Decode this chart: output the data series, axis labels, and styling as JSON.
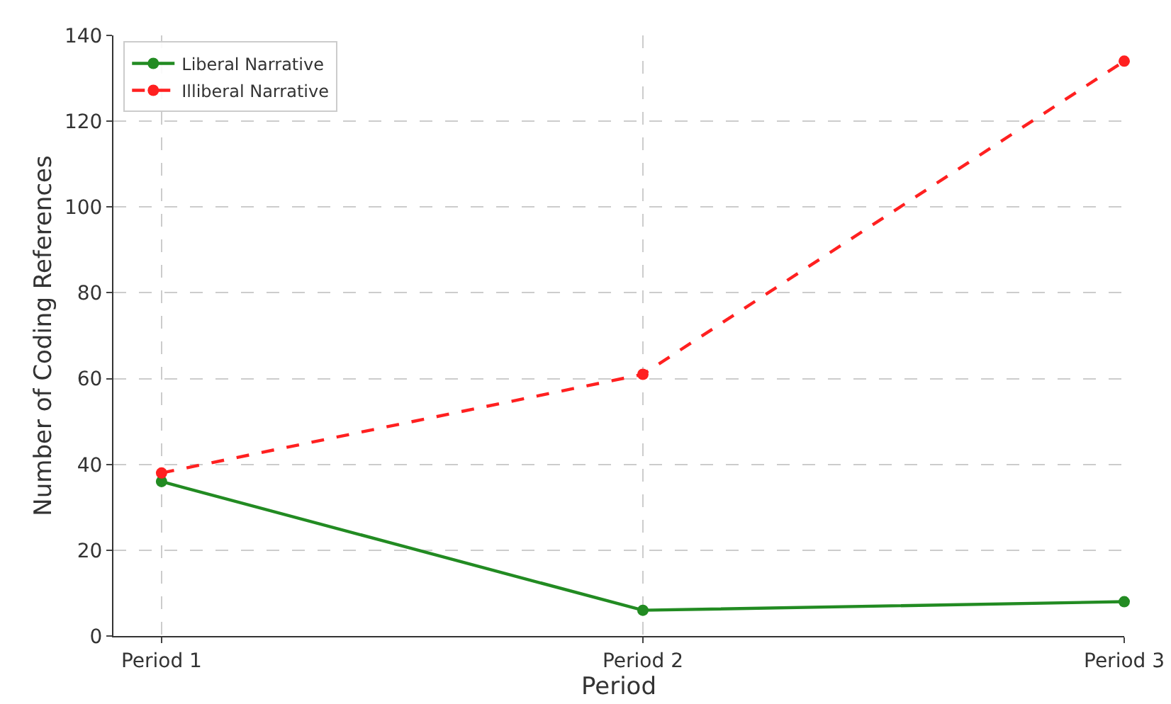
{
  "chart_data": {
    "type": "line",
    "xlabel": "Period",
    "ylabel": "Number of Coding References",
    "categories": [
      "Period 1",
      "Period 2",
      "Period 3"
    ],
    "series": [
      {
        "name": "Liberal Narrative",
        "color": "#228b22",
        "values": [
          36,
          6,
          8
        ],
        "line_style": "solid"
      },
      {
        "name": "Illiberal Narrative",
        "color": "#ff2020",
        "values": [
          38,
          61,
          134
        ],
        "line_style": "dashed"
      }
    ],
    "ylim": [
      0,
      140
    ],
    "yticks": [
      0,
      20,
      40,
      60,
      80,
      100,
      120,
      140
    ],
    "grid": true,
    "legend": "top left",
    "marker": "circle"
  }
}
